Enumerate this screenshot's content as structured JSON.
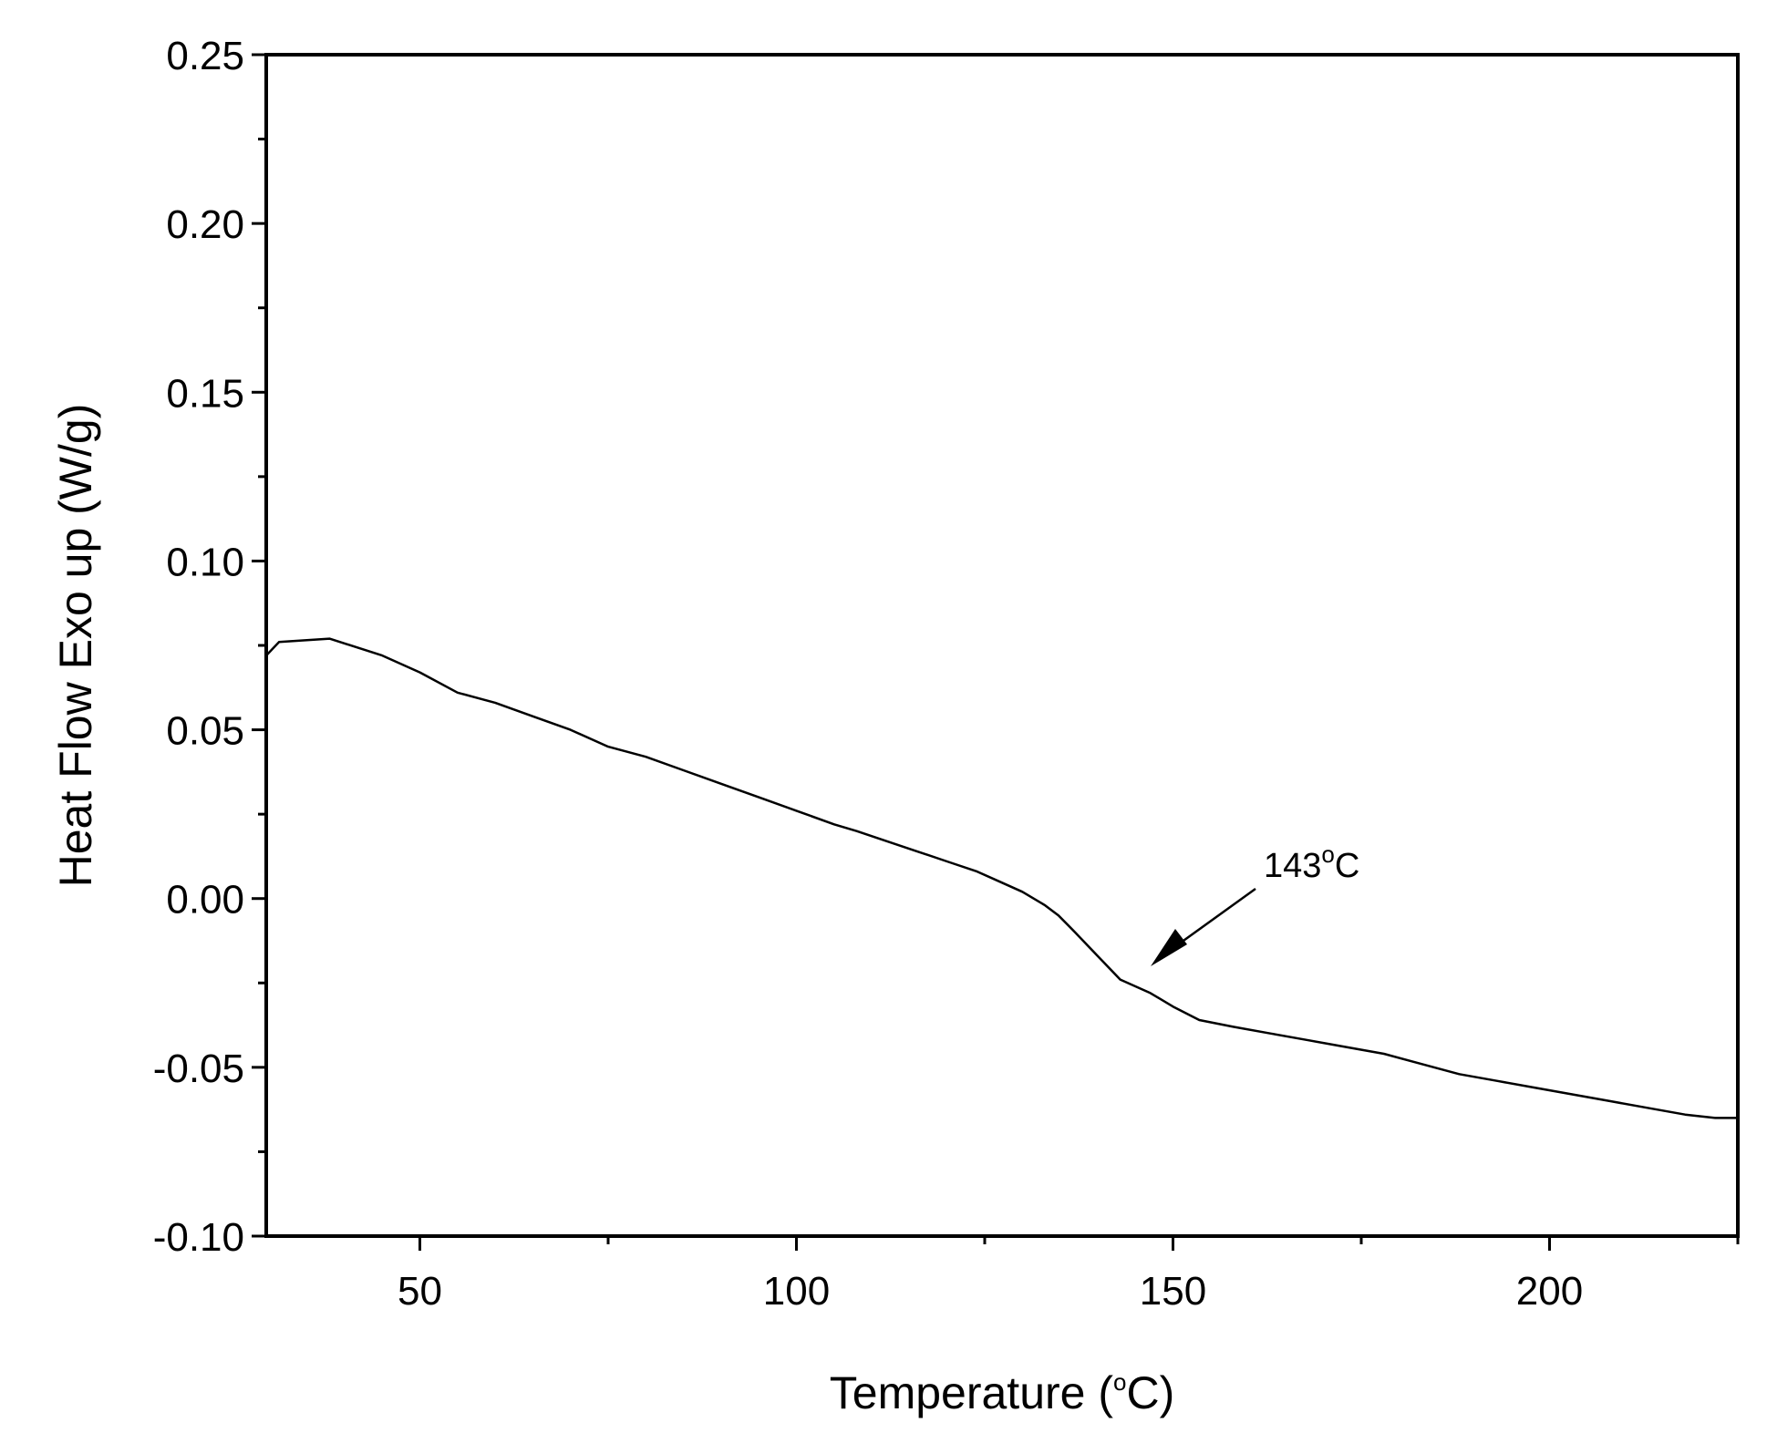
{
  "chart_data": {
    "type": "line",
    "title": "",
    "xlabel": "Temperature (",
    "xlabel_degree": "o",
    "xlabel_unit": "C)",
    "ylabel": "Heat Flow Exo up (W/g)",
    "xlim": [
      29.6,
      225
    ],
    "ylim": [
      -0.1,
      0.25
    ],
    "xticks": [
      50,
      100,
      150,
      200
    ],
    "xtick_labels": [
      "50",
      "100",
      "150",
      "200"
    ],
    "yticks": [
      -0.1,
      -0.05,
      0.0,
      0.05,
      0.1,
      0.15,
      0.2,
      0.25
    ],
    "ytick_labels": [
      "-0.10",
      "-0.05",
      "0.00",
      "0.05",
      "0.10",
      "0.15",
      "0.20",
      "0.25"
    ],
    "grid": false,
    "series": [
      {
        "color": "#000000",
        "x": [
          29.6,
          31.3,
          38.0,
          45.0,
          50.0,
          55.0,
          60.0,
          65.0,
          70.0,
          75.0,
          80.0,
          85.0,
          90.0,
          95.0,
          100.0,
          105.0,
          108.0,
          112.0,
          116.0,
          120.0,
          124.0,
          127.0,
          130.0,
          133.0,
          134.8,
          137.0,
          140.0,
          143.0,
          147.0,
          150.0,
          153.5,
          158.0,
          163.0,
          168.0,
          173.0,
          178.0,
          183.0,
          188.0,
          193.0,
          198.0,
          203.0,
          208.0,
          213.0,
          218.0,
          222.0,
          225.0
        ],
        "y": [
          0.072,
          0.076,
          0.077,
          0.072,
          0.067,
          0.061,
          0.058,
          0.054,
          0.05,
          0.045,
          0.042,
          0.038,
          0.034,
          0.03,
          0.026,
          0.022,
          0.02,
          0.017,
          0.014,
          0.011,
          0.008,
          0.005,
          0.002,
          -0.002,
          -0.005,
          -0.01,
          -0.017,
          -0.024,
          -0.028,
          -0.032,
          -0.036,
          -0.038,
          -0.04,
          -0.042,
          -0.044,
          -0.046,
          -0.049,
          -0.052,
          -0.054,
          -0.056,
          -0.058,
          -0.06,
          -0.062,
          -0.064,
          -0.065,
          -0.065
        ]
      }
    ],
    "annotations": [
      {
        "text": "143",
        "degree": "o",
        "unit": "C",
        "x": 147.5,
        "y": -0.019
      }
    ]
  }
}
